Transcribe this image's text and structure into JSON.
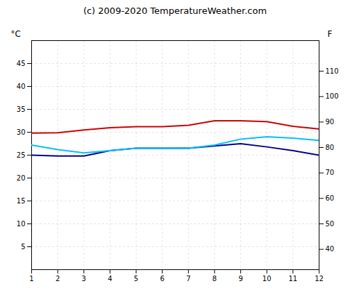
{
  "chart_data": {
    "type": "line",
    "title": "(c) 2009-2020 TemperatureWeather.com",
    "x": [
      1,
      2,
      3,
      4,
      5,
      6,
      7,
      8,
      9,
      10,
      11,
      12
    ],
    "series": [
      {
        "color": "#cc0000",
        "values": [
          29.8,
          29.9,
          30.5,
          31.0,
          31.2,
          31.2,
          31.5,
          32.5,
          32.5,
          32.3,
          31.3,
          30.7
        ]
      },
      {
        "color": "#00008B",
        "values": [
          25.0,
          24.8,
          24.8,
          26.0,
          26.5,
          26.5,
          26.5,
          27.0,
          27.5,
          26.8,
          26.0,
          25.0
        ]
      },
      {
        "color": "#00BFFF",
        "values": [
          27.2,
          26.2,
          25.5,
          26.0,
          26.5,
          26.5,
          26.5,
          27.2,
          28.5,
          29.0,
          28.7,
          28.2
        ]
      }
    ],
    "xlim": [
      1,
      12
    ],
    "xticks": [
      1,
      2,
      3,
      4,
      5,
      6,
      7,
      8,
      9,
      10,
      11,
      12
    ],
    "ylim": [
      0,
      50
    ],
    "yticks": [
      5,
      10,
      15,
      20,
      25,
      30,
      35,
      40,
      45
    ],
    "y2lim": [
      32,
      122
    ],
    "y2ticks": [
      40,
      50,
      60,
      70,
      80,
      90,
      100,
      110
    ],
    "ylabel": "°C",
    "y2label": "F",
    "grid": true
  }
}
